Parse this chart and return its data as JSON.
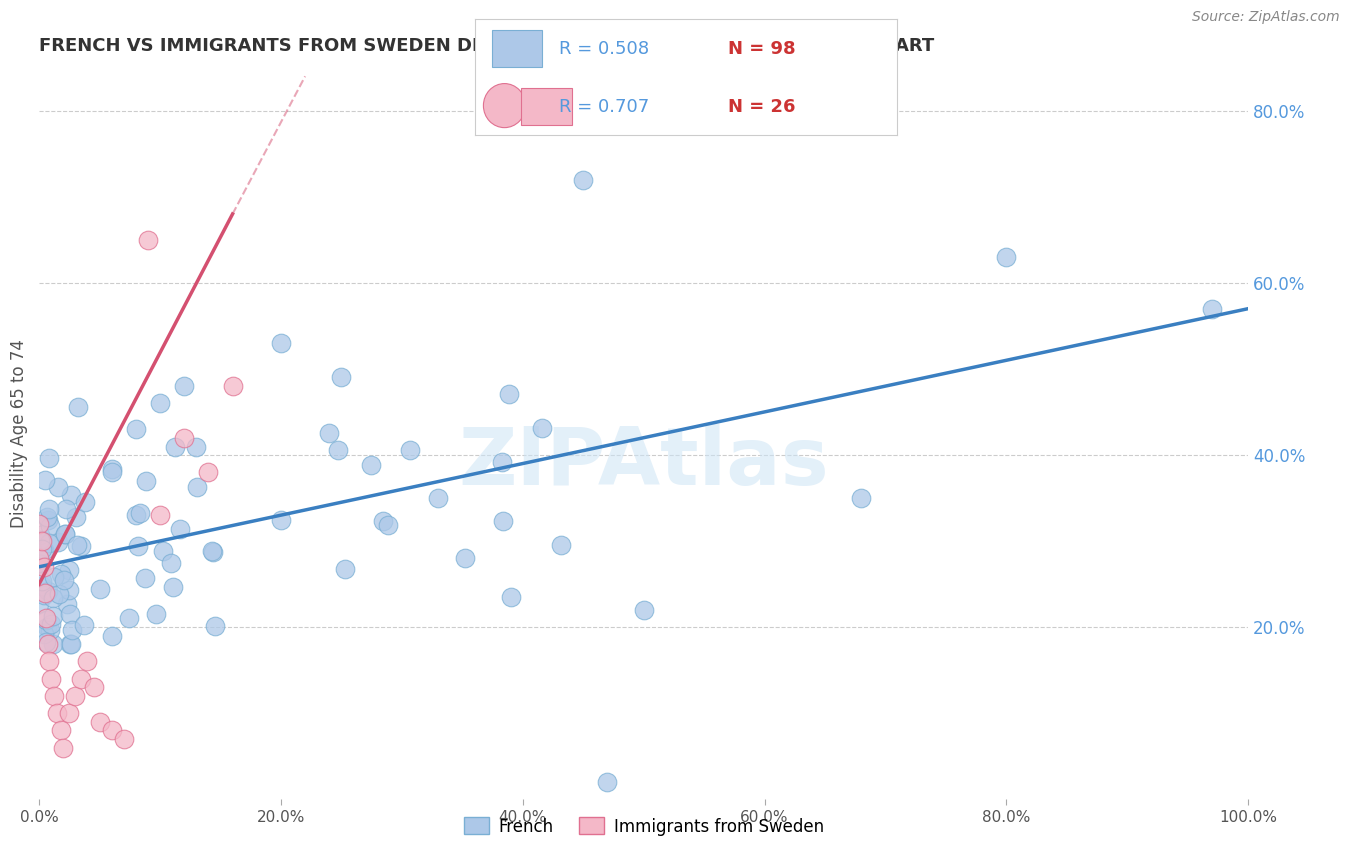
{
  "title": "FRENCH VS IMMIGRANTS FROM SWEDEN DISABILITY AGE 65 TO 74 CORRELATION CHART",
  "source": "Source: ZipAtlas.com",
  "ylabel": "Disability Age 65 to 74",
  "xlim": [
    0,
    1.0
  ],
  "ylim": [
    0,
    0.85
  ],
  "xtick_vals": [
    0.0,
    0.2,
    0.4,
    0.6,
    0.8,
    1.0
  ],
  "xticklabels": [
    "0.0%",
    "20.0%",
    "40.0%",
    "60.0%",
    "80.0%",
    "100.0%"
  ],
  "ytick_vals": [
    0.2,
    0.4,
    0.6,
    0.8
  ],
  "yticklabels": [
    "20.0%",
    "40.0%",
    "60.0%",
    "80.0%"
  ],
  "french_R": 0.508,
  "french_N": 98,
  "sweden_R": 0.707,
  "sweden_N": 26,
  "french_color": "#adc8e8",
  "french_edge_color": "#7aafd4",
  "sweden_color": "#f4b8c8",
  "sweden_edge_color": "#e07090",
  "french_line_color": "#3a7fc1",
  "sweden_line_color": "#d45070",
  "tick_color": "#5599dd",
  "watermark": "ZIPAtlas",
  "legend_french": "French",
  "legend_sweden": "Immigrants from Sweden",
  "french_line_x0": 0.0,
  "french_line_x1": 1.0,
  "french_line_y0": 0.27,
  "french_line_y1": 0.57,
  "sweden_line_x0": 0.0,
  "sweden_line_x1": 0.16,
  "sweden_line_y0": 0.25,
  "sweden_line_y1": 0.68
}
